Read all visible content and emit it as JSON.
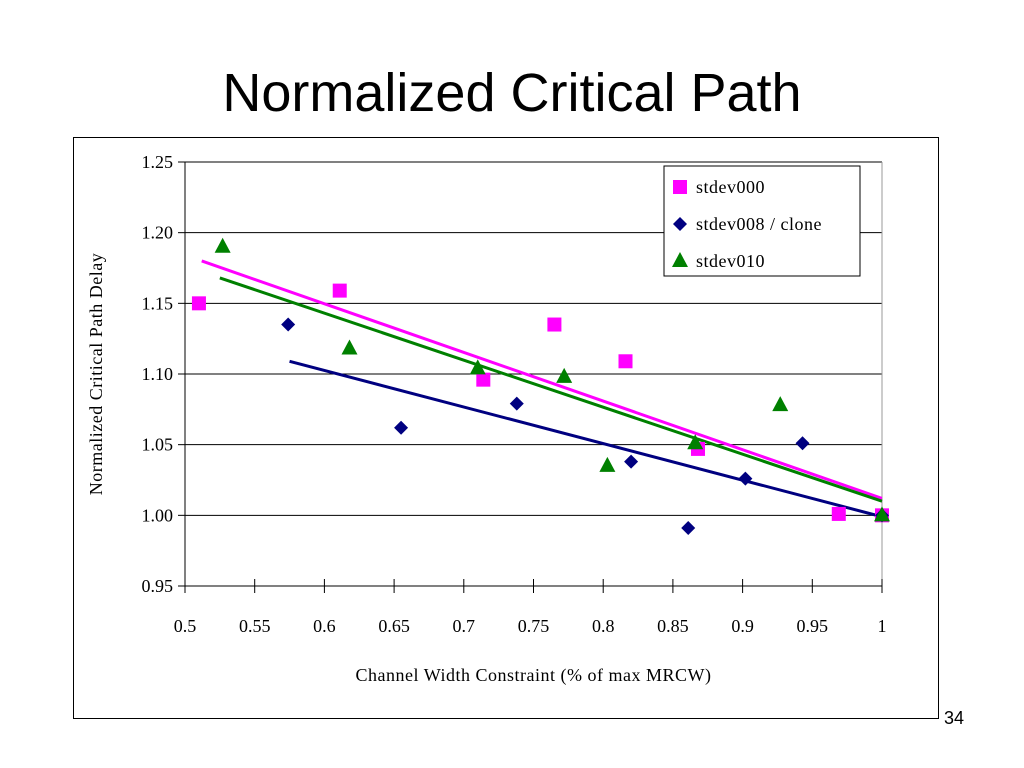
{
  "slide": {
    "title": "Normalized Critical Path",
    "number": "34"
  },
  "chart_data": {
    "type": "scatter",
    "xlabel": "Channel Width Constraint (% of max MRCW)",
    "ylabel": "Normalized Critical Path Delay",
    "xlim": [
      0.5,
      1.0
    ],
    "ylim": [
      0.95,
      1.25
    ],
    "x_ticks": [
      0.5,
      0.55,
      0.6,
      0.65,
      0.7,
      0.75,
      0.8,
      0.85,
      0.9,
      0.95,
      1.0
    ],
    "x_tick_labels": [
      "0.5",
      "0.55",
      "0.6",
      "0.65",
      "0.7",
      "0.75",
      "0.8",
      "0.85",
      "0.9",
      "0.95",
      "1"
    ],
    "y_ticks": [
      0.95,
      1.0,
      1.05,
      1.1,
      1.15,
      1.2,
      1.25
    ],
    "y_tick_labels": [
      "0.95",
      "1.00",
      "1.05",
      "1.10",
      "1.15",
      "1.20",
      "1.25"
    ],
    "grid": "horizontal",
    "legend_position": "top-right",
    "series": [
      {
        "name": "stdev000",
        "marker": "square",
        "color": "#ff00ff",
        "points": [
          {
            "x": 0.51,
            "y": 1.15
          },
          {
            "x": 0.611,
            "y": 1.159
          },
          {
            "x": 0.714,
            "y": 1.096
          },
          {
            "x": 0.765,
            "y": 1.135
          },
          {
            "x": 0.816,
            "y": 1.109
          },
          {
            "x": 0.868,
            "y": 1.047
          },
          {
            "x": 0.969,
            "y": 1.001
          },
          {
            "x": 1.0,
            "y": 1.0
          }
        ],
        "trendline": {
          "x1": 0.512,
          "y1": 1.18,
          "x2": 1.0,
          "y2": 1.012
        }
      },
      {
        "name": "stdev008 / clone",
        "marker": "diamond",
        "color": "#000080",
        "points": [
          {
            "x": 0.574,
            "y": 1.135
          },
          {
            "x": 0.655,
            "y": 1.062
          },
          {
            "x": 0.738,
            "y": 1.079
          },
          {
            "x": 0.82,
            "y": 1.038
          },
          {
            "x": 0.861,
            "y": 0.991
          },
          {
            "x": 0.902,
            "y": 1.026
          },
          {
            "x": 0.943,
            "y": 1.051
          },
          {
            "x": 1.0,
            "y": 1.0
          }
        ],
        "trendline": {
          "x1": 0.575,
          "y1": 1.109,
          "x2": 1.0,
          "y2": 0.999
        }
      },
      {
        "name": "stdev010",
        "marker": "triangle",
        "color": "#008000",
        "points": [
          {
            "x": 0.527,
            "y": 1.19
          },
          {
            "x": 0.618,
            "y": 1.118
          },
          {
            "x": 0.71,
            "y": 1.104
          },
          {
            "x": 0.772,
            "y": 1.098
          },
          {
            "x": 0.803,
            "y": 1.035
          },
          {
            "x": 0.866,
            "y": 1.051
          },
          {
            "x": 0.927,
            "y": 1.078
          },
          {
            "x": 1.0,
            "y": 1.0
          }
        ],
        "trendline": {
          "x1": 0.525,
          "y1": 1.168,
          "x2": 1.0,
          "y2": 1.01
        }
      }
    ]
  }
}
